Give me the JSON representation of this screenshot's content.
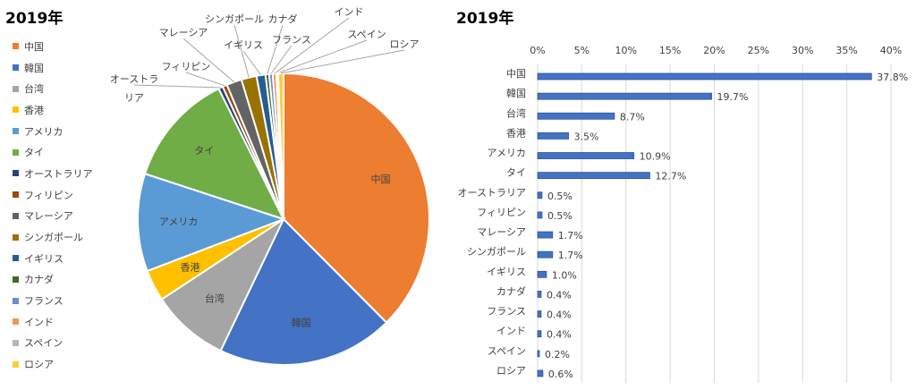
{
  "chart_data": [
    {
      "type": "pie",
      "title": "2019年",
      "legend_position": "left",
      "categories": [
        "中国",
        "韓国",
        "台湾",
        "香港",
        "アメリカ",
        "タイ",
        "オーストラリア",
        "フィリピン",
        "マレーシア",
        "シンガポール",
        "イギリス",
        "カナダ",
        "フランス",
        "インド",
        "スペイン",
        "ロシア"
      ],
      "values": [
        37.8,
        19.7,
        8.7,
        3.5,
        10.9,
        12.7,
        0.5,
        0.5,
        1.7,
        1.7,
        1.0,
        0.4,
        0.4,
        0.4,
        0.2,
        0.6
      ],
      "slice_labels": [
        "中国",
        "韓国",
        "台湾",
        "香港",
        "アメリカ",
        "タイ",
        "オーストラ\nリア",
        "フィリピン",
        "マレーシア",
        "シンガポール",
        "イギリス",
        "カナダ",
        "フランス",
        "インド",
        "スペイン",
        "ロシア"
      ],
      "colors": [
        "#ED7D31",
        "#4472C4",
        "#A5A5A5",
        "#FFC000",
        "#5B9BD5",
        "#70AD47",
        "#264478",
        "#9E480E",
        "#636363",
        "#997300",
        "#255E91",
        "#43682B",
        "#698ED0",
        "#F1975A",
        "#B7B7B7",
        "#FFCD33"
      ]
    },
    {
      "type": "bar",
      "orientation": "horizontal",
      "title": "2019年",
      "categories": [
        "中国",
        "韓国",
        "台湾",
        "香港",
        "アメリカ",
        "タイ",
        "オーストラリア",
        "フィリピン",
        "マレーシア",
        "シンガポール",
        "イギリス",
        "カナダ",
        "フランス",
        "インド",
        "スペイン",
        "ロシア"
      ],
      "values": [
        37.8,
        19.7,
        8.7,
        3.5,
        10.9,
        12.7,
        0.5,
        0.5,
        1.7,
        1.7,
        1.0,
        0.4,
        0.4,
        0.4,
        0.2,
        0.6
      ],
      "data_labels": [
        "37.8%",
        "19.7%",
        "8.7%",
        "3.5%",
        "10.9%",
        "12.7%",
        "0.5%",
        "0.5%",
        "1.7%",
        "1.7%",
        "1.0%",
        "0.4%",
        "0.4%",
        "0.4%",
        "0.2%",
        "0.6%"
      ],
      "xlim": [
        0,
        40
      ],
      "xticks": [
        "0%",
        "5%",
        "10%",
        "15%",
        "20%",
        "25%",
        "30%",
        "35%",
        "40%"
      ],
      "xaxis_position": "top",
      "grid": true,
      "color": "#4472C4"
    }
  ]
}
